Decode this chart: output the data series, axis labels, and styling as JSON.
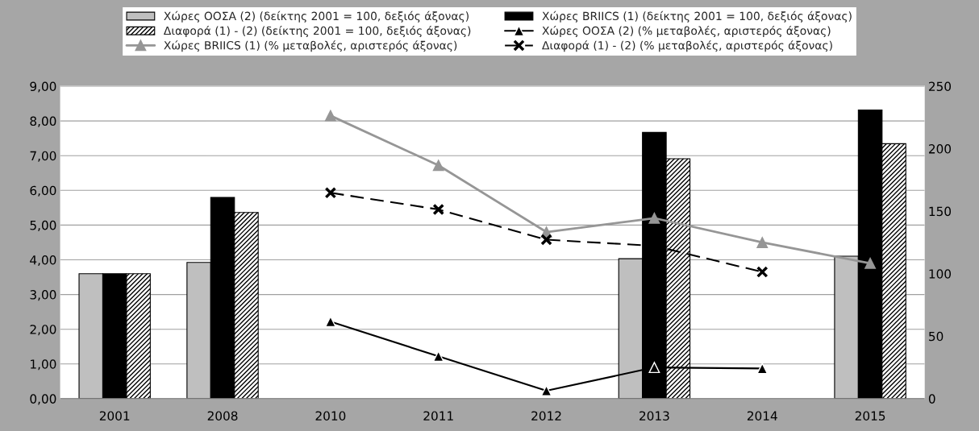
{
  "chart_data": {
    "type": "bar",
    "categories": [
      "2001",
      "2008",
      "2010",
      "2011",
      "2012",
      "2013",
      "2014",
      "2015"
    ],
    "series": [
      {
        "name": "Χώρες ΟΟΣΑ (2) (δείκτης 2001 = 100, δεξιός άξονας)",
        "axis": "y2",
        "color": "#bfbfbf",
        "values": [
          100,
          109,
          null,
          null,
          null,
          112,
          null,
          114
        ]
      },
      {
        "name": "Χώρες BRIICS (1) (δείκτης 2001 = 100, δεξιός άξονας)",
        "axis": "y2",
        "color": "#000000",
        "values": [
          100,
          161,
          null,
          null,
          null,
          213,
          null,
          231
        ]
      },
      {
        "name": "Διαφορά (1) - (2) (δείκτης 2001 = 100, δεξιός άξονας)",
        "axis": "y2",
        "color": "#000000",
        "values": [
          100,
          149,
          null,
          null,
          null,
          192,
          null,
          204
        ]
      },
      {
        "name": "Χώρες ΟΟΣΑ (2) (% μεταβολές, αριστερός άξονας)",
        "type": "line",
        "color": "#000000",
        "marker": "triangle",
        "line_style": "solid",
        "values": [
          null,
          null,
          2.22,
          1.22,
          0.23,
          0.9,
          0.87,
          null
        ]
      },
      {
        "name": "Χώρες BRIICS (1) (% μεταβολές, αριστερός άξονας)",
        "type": "line",
        "color": "#969696",
        "marker": "triangle",
        "line_style": "solid",
        "values": [
          null,
          null,
          8.15,
          6.72,
          4.8,
          5.2,
          4.5,
          3.9
        ]
      },
      {
        "name": "Διαφορά (1) - (2) (% μεταβολές, αριστερός άξονας)",
        "type": "line",
        "color": "#000000",
        "marker": "cross",
        "line_style": "dashed",
        "values": [
          null,
          null,
          5.93,
          5.45,
          4.58,
          4.4,
          3.65,
          null
        ]
      }
    ],
    "ylim": [
      0,
      9
    ],
    "yticks": [
      {
        "value": 0,
        "label": "0,00"
      },
      {
        "value": 1,
        "label": "1,00"
      },
      {
        "value": 2,
        "label": "2,00"
      },
      {
        "value": 3,
        "label": "3,00"
      },
      {
        "value": 4,
        "label": "4,00"
      },
      {
        "value": 5,
        "label": "5,00"
      },
      {
        "value": 6,
        "label": "6,00"
      },
      {
        "value": 7,
        "label": "7,00"
      },
      {
        "value": 8,
        "label": "8,00"
      },
      {
        "value": 9,
        "label": "9,00"
      }
    ],
    "y2lim": [
      0,
      250
    ],
    "y2ticks": [
      0,
      50,
      100,
      150,
      200,
      250
    ],
    "grid": "y",
    "legend": "top"
  }
}
